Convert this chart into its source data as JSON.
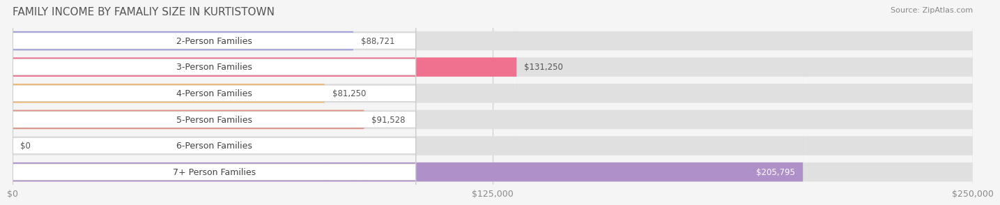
{
  "title": "FAMILY INCOME BY FAMALIY SIZE IN KURTISTOWN",
  "source": "Source: ZipAtlas.com",
  "categories": [
    "2-Person Families",
    "3-Person Families",
    "4-Person Families",
    "5-Person Families",
    "6-Person Families",
    "7+ Person Families"
  ],
  "values": [
    88721,
    131250,
    81250,
    91528,
    0,
    205795
  ],
  "labels": [
    "$88,721",
    "$131,250",
    "$81,250",
    "$91,528",
    "$0",
    "$205,795"
  ],
  "bar_colors": [
    "#9999dd",
    "#f07090",
    "#f0b870",
    "#e09080",
    "#a0b8e0",
    "#b090c8"
  ],
  "bar_colors_light": [
    "#c8c8ee",
    "#f8b0c0",
    "#f8d8a8",
    "#ecc0b8",
    "#c8d8f0",
    "#d0b8e0"
  ],
  "label_bg": "#f2f2f0",
  "background_color": "#f5f5f5",
  "bar_bg_color": "#e8e8e8",
  "xlim": [
    0,
    250000
  ],
  "xticks": [
    0,
    125000,
    250000
  ],
  "xticklabels": [
    "$0",
    "$125,000",
    "$250,000"
  ],
  "title_fontsize": 11,
  "label_fontsize": 9,
  "value_fontsize": 8.5,
  "source_fontsize": 8
}
